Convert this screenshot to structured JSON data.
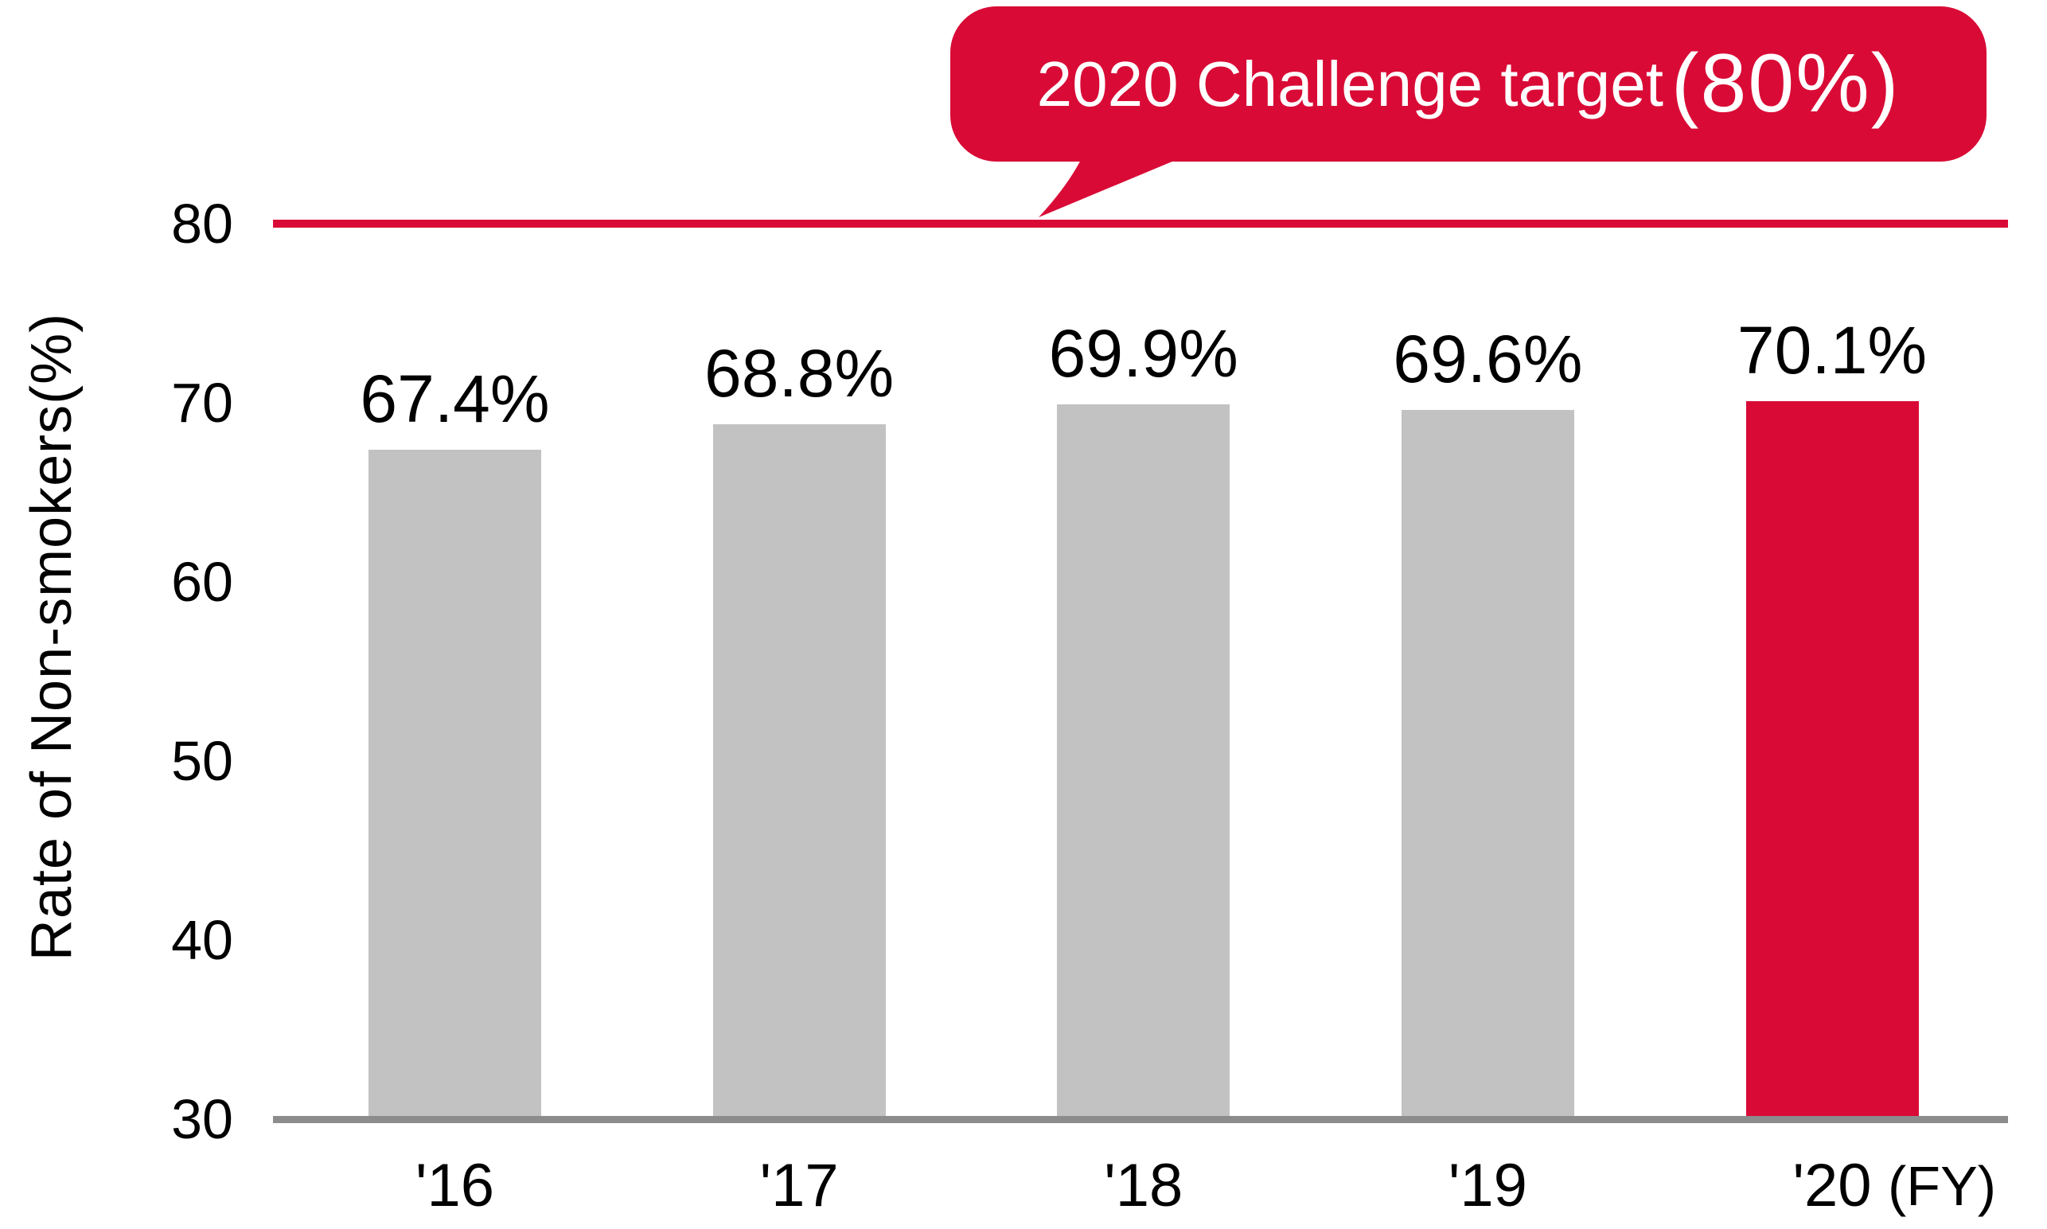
{
  "chart_data": {
    "type": "bar",
    "categories": [
      "'16",
      "'17",
      "'18",
      "'19",
      "'20"
    ],
    "values": [
      67.4,
      68.8,
      69.9,
      69.6,
      70.1
    ],
    "value_labels": [
      "67.4%",
      "68.8%",
      "69.9%",
      "69.6%",
      "70.1%"
    ],
    "title": "",
    "xlabel": "",
    "ylabel": "Rate of Non-smokers(%)",
    "x_unit": "(FY)",
    "yticks": [
      80,
      70,
      60,
      50,
      40,
      30
    ],
    "ylim": [
      30,
      80
    ],
    "grid": "off",
    "legend": null,
    "highlight_index": 4,
    "target_line": {
      "value": 80,
      "label_main": "2020 Challenge target",
      "label_em": "(80%)",
      "label_full": "2020 Challenge target (80%)"
    },
    "bar_colors": [
      "#C2C2C2",
      "#C2C2C2",
      "#C2C2C2",
      "#C2C2C2",
      "#D90B36"
    ]
  },
  "colors": {
    "accent_red": "#D90B36",
    "bar_gray": "#C2C2C2",
    "axis_gray": "#8C8C8C",
    "text_black": "#000000",
    "callout_text": "#FFFFFF",
    "background": "#FFFFFF"
  }
}
